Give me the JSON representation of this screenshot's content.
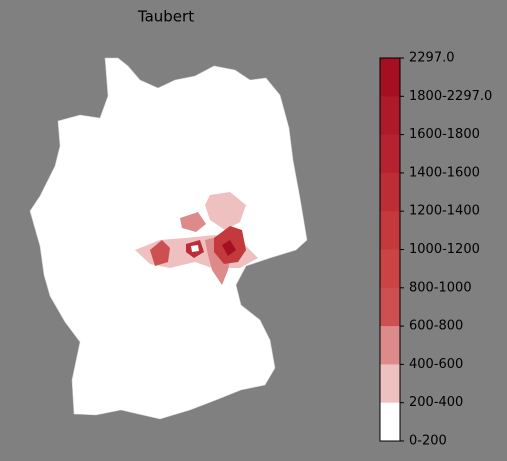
{
  "title": "Taubert",
  "legend": {
    "labels": [
      "2297.0",
      "1800-2297.0",
      "1600-1800",
      "1400-1600",
      "1200-1400",
      "1000-1200",
      "800-1000",
      "600-800",
      "400-600",
      "200-400",
      "0-200"
    ],
    "colors": [
      "#a50f22",
      "#ad1a2a",
      "#b52330",
      "#bd2d35",
      "#c4393b",
      "#c94443",
      "#cc5050",
      "#dc8a8a",
      "#eec0c0",
      "#ffffff"
    ]
  }
}
